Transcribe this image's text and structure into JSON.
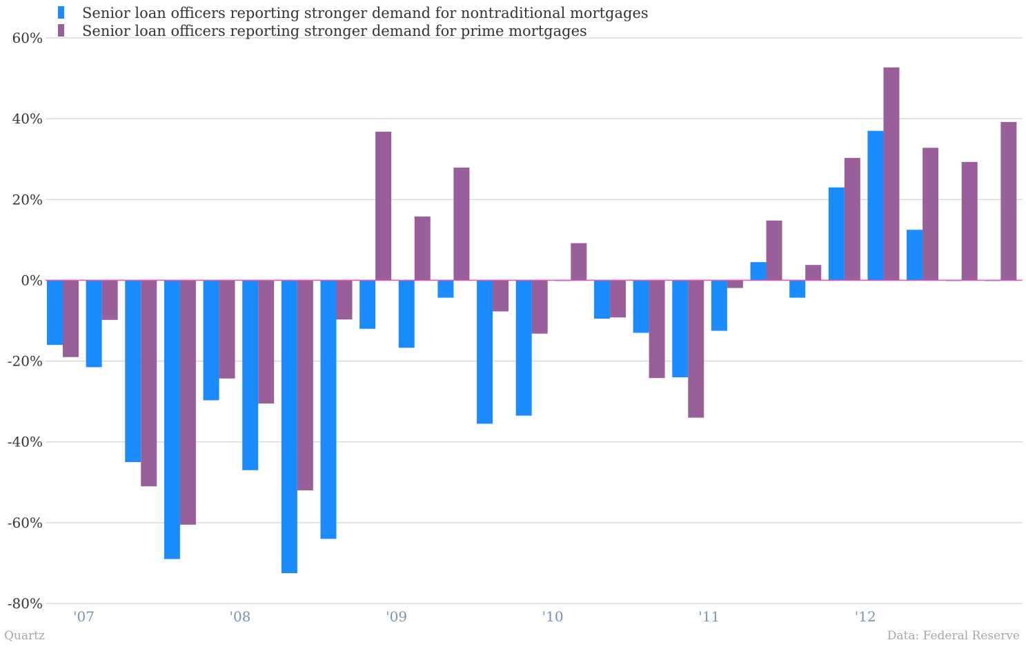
{
  "chart_data": {
    "type": "bar",
    "categories": [
      "2007 Q1",
      "2007 Q2",
      "2007 Q3",
      "2007 Q4",
      "2008 Q1",
      "2008 Q2",
      "2008 Q3",
      "2008 Q4",
      "2009 Q1",
      "2009 Q2",
      "2009 Q3",
      "2009 Q4",
      "2010 Q1",
      "2010 Q2",
      "2010 Q3",
      "2010 Q4",
      "2011 Q1",
      "2011 Q2",
      "2011 Q3",
      "2011 Q4",
      "2012 Q1",
      "2012 Q2",
      "2012 Q3",
      "2012 Q4",
      "2013 Q1"
    ],
    "series": [
      {
        "name": "Senior loan officers reporting stronger demand for nontraditional mortgages",
        "color": "#1a8cff",
        "values": [
          -16,
          -21.5,
          -45,
          -69,
          -29.7,
          -47,
          -72.5,
          -64,
          -12,
          -16.7,
          -4.3,
          -35.5,
          -33.5,
          0,
          -9.5,
          -13,
          -24,
          -12.5,
          4.5,
          -4.3,
          23,
          37,
          12.5,
          0,
          0
        ]
      },
      {
        "name": "Senior loan officers reporting stronger demand for prime mortgages",
        "color": "#995f9a",
        "values": [
          -19,
          -9.8,
          -51,
          -60.5,
          -24.3,
          -30.5,
          -52,
          -9.7,
          36.8,
          15.8,
          27.9,
          -7.7,
          -13.2,
          9.2,
          -9.2,
          -24.2,
          -34,
          -1.9,
          14.8,
          3.8,
          30.3,
          52.7,
          32.8,
          29.3,
          39.2
        ]
      }
    ],
    "x_tick_labels": [
      "'07",
      "'08",
      "'09",
      "'10",
      "'11",
      "'12"
    ],
    "y_tick_labels": [
      "60%",
      "40%",
      "20%",
      "0%",
      "-20%",
      "-40%",
      "-60%",
      "-80%"
    ],
    "y_ticks": [
      60,
      40,
      20,
      0,
      -20,
      -40,
      -60,
      -80
    ],
    "ylim": [
      -80,
      60
    ],
    "grid": true,
    "legend_position": "top-left",
    "zero_line_color": "#e94fb8",
    "title": "",
    "xlabel": "",
    "ylabel": ""
  },
  "footer": {
    "source_left": "Quartz",
    "source_right": "Data: Federal Reserve"
  }
}
